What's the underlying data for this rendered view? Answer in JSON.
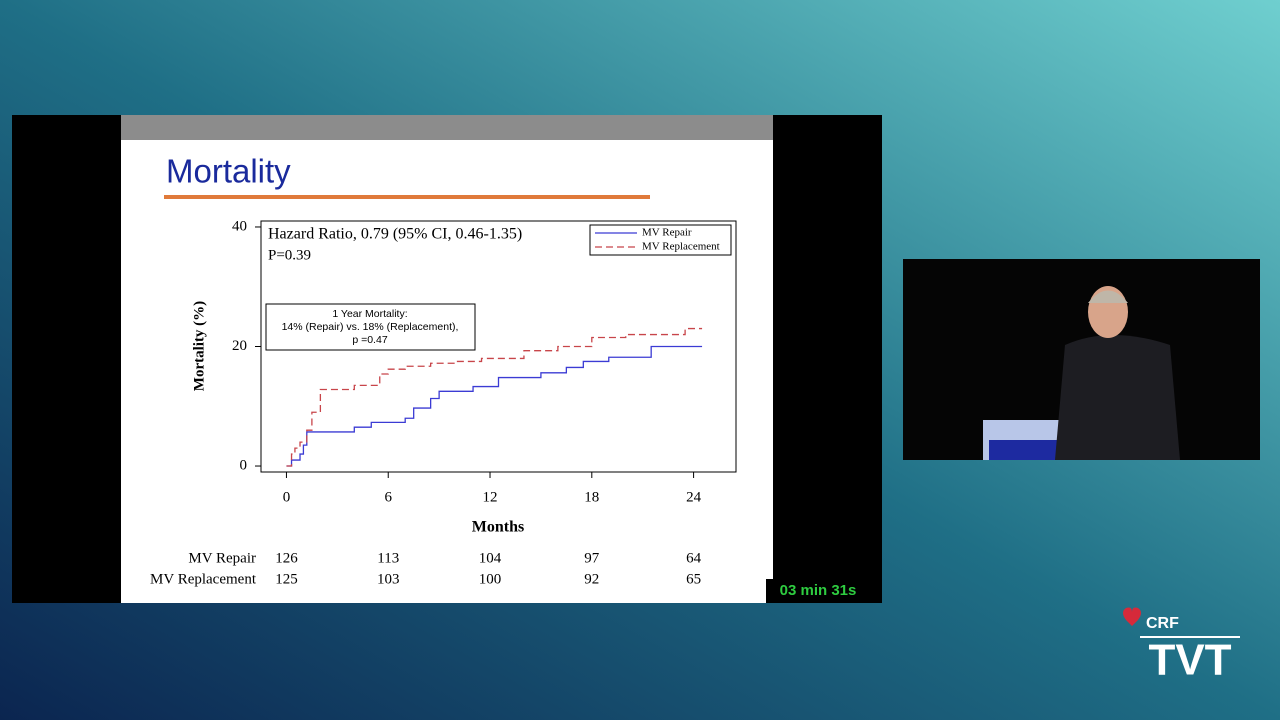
{
  "slide_title": "Mortality",
  "chart_data": {
    "type": "line",
    "step": true,
    "xlabel": "Months",
    "ylabel": "Mortality (%)",
    "xlim": [
      -1.5,
      26.5
    ],
    "ylim": [
      -1,
      41
    ],
    "xticks": [
      0,
      6,
      12,
      18,
      24
    ],
    "yticks": [
      0,
      20,
      40
    ],
    "grid": false,
    "legend": "top-right",
    "annotations": [
      "Hazard Ratio, 0.79 (95% CI, 0.46-1.35)",
      "P=0.39",
      "1 Year Mortality:",
      "14% (Repair) vs. 18% (Replacement),",
      "p =0.47"
    ],
    "series": [
      {
        "name": "MV Repair",
        "color": "#3b3bd4",
        "dash": false,
        "x": [
          0,
          0.3,
          0.8,
          1.0,
          1.2,
          4,
          5,
          7,
          7.5,
          8.5,
          9,
          11,
          12.5,
          15,
          16.5,
          17.5,
          19,
          21.5,
          24.5
        ],
        "values": [
          0,
          1,
          2,
          3.5,
          5.7,
          6.5,
          7.3,
          8,
          9.7,
          11.3,
          12.5,
          13.3,
          14.8,
          15.6,
          16.5,
          17.5,
          18.2,
          20,
          20
        ]
      },
      {
        "name": "MV Replacement",
        "color": "#c8454a",
        "dash": true,
        "x": [
          0,
          0.3,
          0.5,
          0.8,
          1.2,
          1.5,
          2,
          4,
          5.5,
          6,
          7,
          8.5,
          10,
          11.5,
          14,
          16,
          18,
          20,
          23.5,
          24.5
        ],
        "values": [
          0,
          2,
          3,
          4,
          6,
          9,
          12.8,
          13.5,
          15.4,
          16.2,
          16.7,
          17.2,
          17.5,
          18,
          19.3,
          20,
          21.5,
          22,
          23,
          23
        ]
      }
    ]
  },
  "risk_table": [
    {
      "name": "MV Repair",
      "counts": [
        126,
        113,
        104,
        97,
        64
      ]
    },
    {
      "name": "MV Replacement",
      "counts": [
        125,
        103,
        100,
        92,
        65
      ]
    }
  ],
  "timer": "03 min 31s",
  "logo": {
    "brand": "CRF",
    "event": "TVT"
  }
}
